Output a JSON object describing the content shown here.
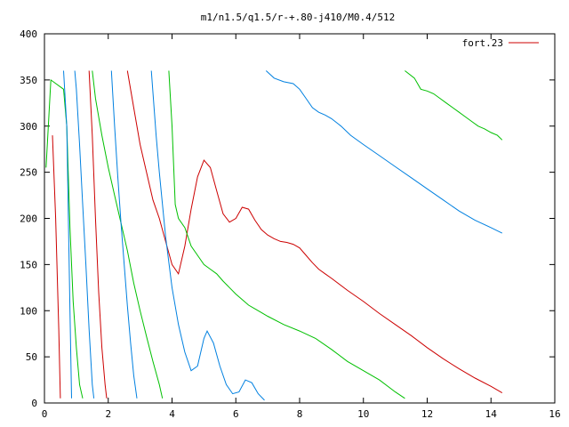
{
  "chart_data": {
    "type": "line",
    "title": "m1/n1.5/q1.5/r-+.80-j410/M0.4/512",
    "xlabel": "",
    "ylabel": "",
    "xlim": [
      0,
      16
    ],
    "ylim": [
      0,
      400
    ],
    "x_ticks": [
      "0",
      "2",
      "4",
      "6",
      "8",
      "10",
      "12",
      "14",
      "16"
    ],
    "y_ticks": [
      "0",
      "50",
      "100",
      "150",
      "200",
      "250",
      "300",
      "350",
      "400"
    ],
    "grid": false,
    "legend_position": "top-right",
    "legend": {
      "label": "fort.23",
      "color": "#cc0000"
    },
    "colors": {
      "red": "#cc0000",
      "green": "#00c000",
      "blue": "#0080e0"
    },
    "series": [
      {
        "color": "#cc0000",
        "values_desc": "wrapped descending ramps",
        "segments": [
          [
            [
              0.25,
              290
            ],
            [
              0.35,
              200
            ],
            [
              0.45,
              80
            ],
            [
              0.5,
              5
            ]
          ],
          [
            [
              1.4,
              360
            ],
            [
              1.5,
              290
            ],
            [
              1.6,
              200
            ],
            [
              1.7,
              120
            ],
            [
              1.8,
              60
            ],
            [
              1.9,
              20
            ],
            [
              1.95,
              5
            ]
          ],
          [
            [
              2.6,
              360
            ],
            [
              2.8,
              320
            ],
            [
              3.0,
              280
            ],
            [
              3.2,
              250
            ],
            [
              3.4,
              220
            ],
            [
              3.6,
              200
            ],
            [
              3.8,
              175
            ],
            [
              4.0,
              150
            ],
            [
              4.2,
              140
            ],
            [
              4.4,
              170
            ],
            [
              4.6,
              210
            ],
            [
              4.8,
              245
            ],
            [
              5.0,
              263
            ],
            [
              5.2,
              255
            ],
            [
              5.4,
              230
            ],
            [
              5.6,
              205
            ],
            [
              5.8,
              196
            ],
            [
              6.0,
              200
            ],
            [
              6.2,
              212
            ],
            [
              6.4,
              210
            ],
            [
              6.6,
              198
            ],
            [
              6.8,
              188
            ],
            [
              7.0,
              182
            ],
            [
              7.2,
              178
            ],
            [
              7.4,
              175
            ],
            [
              7.6,
              174
            ],
            [
              7.8,
              172
            ],
            [
              8.0,
              168
            ],
            [
              8.2,
              160
            ],
            [
              8.4,
              152
            ],
            [
              8.6,
              145
            ],
            [
              8.8,
              140
            ],
            [
              9.0,
              135
            ],
            [
              9.5,
              122
            ],
            [
              10.0,
              110
            ],
            [
              10.5,
              97
            ],
            [
              11.0,
              85
            ],
            [
              11.5,
              73
            ],
            [
              12.0,
              60
            ],
            [
              12.5,
              48
            ],
            [
              13.0,
              37
            ],
            [
              13.5,
              27
            ],
            [
              14.0,
              18
            ],
            [
              14.35,
              11
            ]
          ]
        ]
      },
      {
        "color": "#00c000",
        "values_desc": "noisy descending trend",
        "segments": [
          [
            [
              0.05,
              255
            ],
            [
              0.2,
              350
            ],
            [
              0.6,
              340
            ],
            [
              0.7,
              300
            ],
            [
              0.8,
              190
            ],
            [
              0.9,
              110
            ],
            [
              1.0,
              60
            ],
            [
              1.1,
              20
            ],
            [
              1.2,
              5
            ]
          ],
          [
            [
              1.5,
              360
            ],
            [
              1.6,
              330
            ],
            [
              1.8,
              290
            ],
            [
              2.0,
              255
            ],
            [
              2.2,
              225
            ],
            [
              2.4,
              195
            ],
            [
              2.6,
              165
            ],
            [
              2.8,
              130
            ],
            [
              3.0,
              100
            ],
            [
              3.2,
              72
            ],
            [
              3.4,
              45
            ],
            [
              3.6,
              20
            ],
            [
              3.7,
              5
            ]
          ],
          [
            [
              3.9,
              360
            ],
            [
              4.0,
              300
            ],
            [
              4.1,
              215
            ],
            [
              4.2,
              200
            ],
            [
              4.4,
              190
            ],
            [
              4.6,
              170
            ],
            [
              4.8,
              160
            ],
            [
              5.0,
              150
            ],
            [
              5.2,
              145
            ],
            [
              5.4,
              140
            ],
            [
              5.6,
              132
            ],
            [
              5.8,
              125
            ],
            [
              6.0,
              118
            ],
            [
              6.2,
              112
            ],
            [
              6.4,
              106
            ],
            [
              6.6,
              102
            ],
            [
              6.8,
              98
            ],
            [
              7.0,
              94
            ],
            [
              7.5,
              85
            ],
            [
              8.0,
              78
            ],
            [
              8.5,
              70
            ],
            [
              9.0,
              58
            ],
            [
              9.5,
              45
            ],
            [
              10.0,
              35
            ],
            [
              10.5,
              25
            ],
            [
              11.0,
              12
            ],
            [
              11.3,
              5
            ]
          ],
          [
            [
              11.3,
              360
            ],
            [
              11.6,
              352
            ],
            [
              11.8,
              340
            ],
            [
              12.0,
              338
            ],
            [
              12.2,
              335
            ],
            [
              12.4,
              330
            ],
            [
              12.6,
              325
            ],
            [
              12.8,
              320
            ],
            [
              13.0,
              315
            ],
            [
              13.2,
              310
            ],
            [
              13.4,
              305
            ],
            [
              13.6,
              300
            ],
            [
              13.8,
              297
            ],
            [
              14.0,
              293
            ],
            [
              14.2,
              290
            ],
            [
              14.35,
              285
            ]
          ]
        ]
      },
      {
        "color": "#0080e0",
        "values_desc": "wrapped descending ramps",
        "segments": [
          [
            [
              0.6,
              360
            ],
            [
              0.7,
              300
            ],
            [
              0.75,
              200
            ],
            [
              0.8,
              100
            ],
            [
              0.85,
              5
            ]
          ],
          [
            [
              0.95,
              360
            ],
            [
              1.0,
              340
            ],
            [
              1.1,
              280
            ],
            [
              1.2,
              215
            ],
            [
              1.3,
              150
            ],
            [
              1.4,
              80
            ],
            [
              1.5,
              20
            ],
            [
              1.55,
              5
            ]
          ],
          [
            [
              2.1,
              360
            ],
            [
              2.2,
              300
            ],
            [
              2.3,
              245
            ],
            [
              2.4,
              195
            ],
            [
              2.5,
              150
            ],
            [
              2.6,
              105
            ],
            [
              2.7,
              65
            ],
            [
              2.8,
              30
            ],
            [
              2.9,
              5
            ]
          ],
          [
            [
              3.35,
              360
            ],
            [
              3.5,
              290
            ],
            [
              3.6,
              250
            ],
            [
              3.8,
              180
            ],
            [
              4.0,
              125
            ],
            [
              4.2,
              85
            ],
            [
              4.4,
              55
            ],
            [
              4.6,
              35
            ],
            [
              4.8,
              40
            ],
            [
              5.0,
              70
            ],
            [
              5.1,
              78
            ],
            [
              5.3,
              65
            ],
            [
              5.5,
              40
            ],
            [
              5.7,
              20
            ],
            [
              5.9,
              10
            ],
            [
              6.1,
              12
            ],
            [
              6.3,
              25
            ],
            [
              6.5,
              22
            ],
            [
              6.7,
              10
            ],
            [
              6.9,
              3
            ]
          ],
          [
            [
              6.95,
              360
            ],
            [
              7.2,
              352
            ],
            [
              7.5,
              348
            ],
            [
              7.8,
              346
            ],
            [
              8.0,
              340
            ],
            [
              8.2,
              330
            ],
            [
              8.4,
              320
            ],
            [
              8.6,
              315
            ],
            [
              8.8,
              312
            ],
            [
              9.0,
              308
            ],
            [
              9.3,
              300
            ],
            [
              9.6,
              290
            ],
            [
              10.0,
              280
            ],
            [
              10.5,
              268
            ],
            [
              11.0,
              256
            ],
            [
              11.5,
              244
            ],
            [
              12.0,
              232
            ],
            [
              12.5,
              220
            ],
            [
              13.0,
              208
            ],
            [
              13.5,
              198
            ],
            [
              14.0,
              190
            ],
            [
              14.35,
              184
            ]
          ]
        ]
      }
    ]
  }
}
